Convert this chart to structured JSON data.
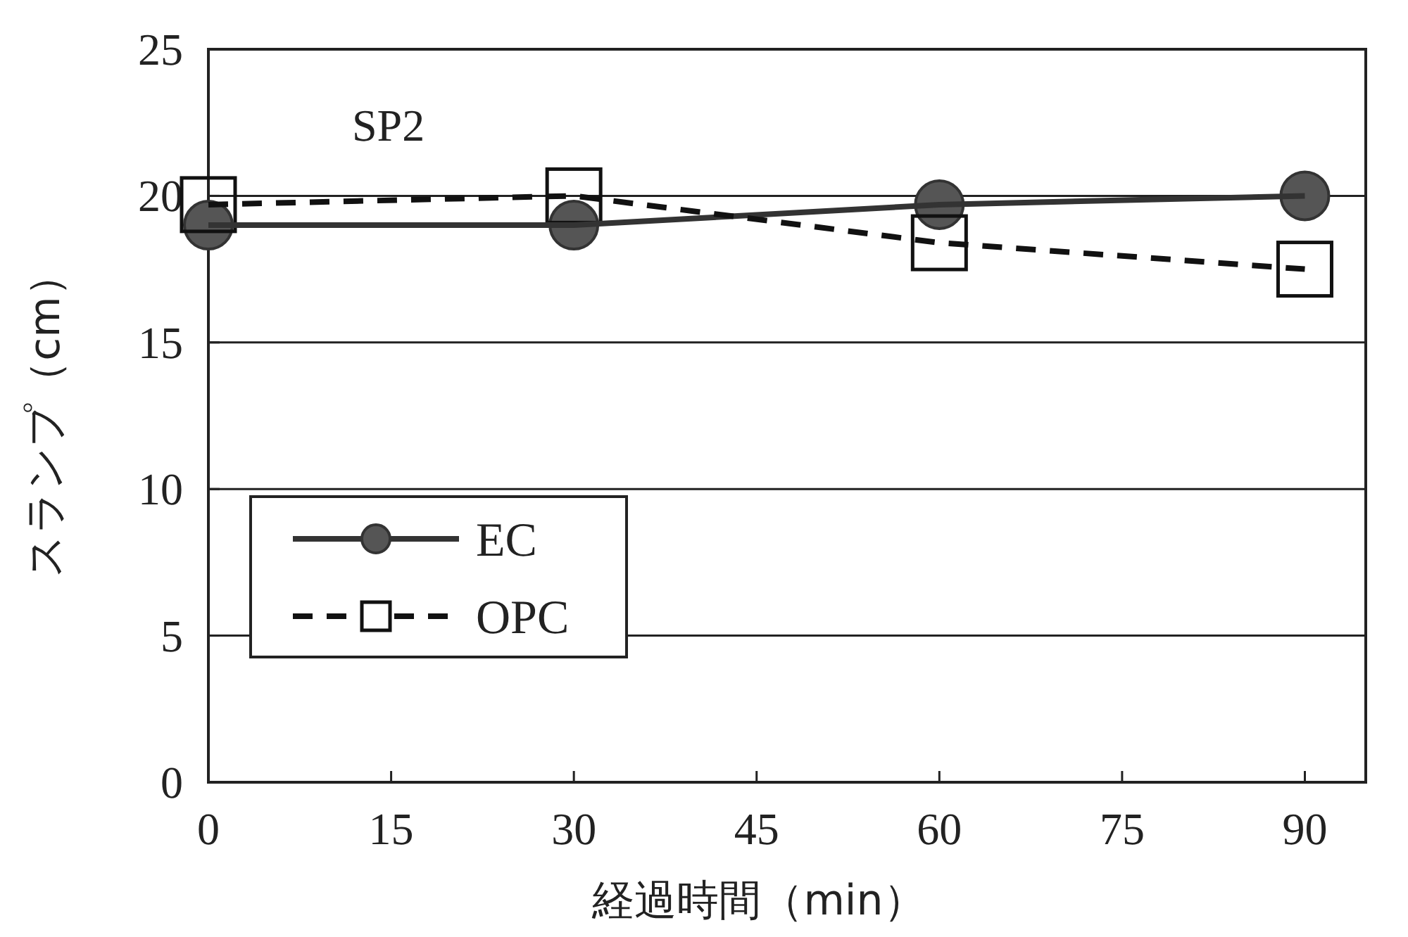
{
  "chart_data": {
    "type": "line",
    "xlabel": "経過時間（min）",
    "ylabel": "スランプ（cm）",
    "annotations": [
      "SP2"
    ],
    "x": [
      0,
      30,
      60,
      90
    ],
    "xlim": [
      0,
      95
    ],
    "xticks": [
      0,
      15,
      30,
      45,
      60,
      75,
      90
    ],
    "ylim": [
      0,
      25
    ],
    "yticks": [
      0,
      5,
      10,
      15,
      20,
      25
    ],
    "grid": "y",
    "legend": "left",
    "series": [
      {
        "name": "EC",
        "color": "#333333",
        "values": [
          19,
          19,
          19.7,
          20
        ],
        "marker": "circle",
        "line_style": "solid"
      },
      {
        "name": "OPC",
        "color": "#111111",
        "values": [
          19.7,
          20,
          18.4,
          17.5
        ],
        "marker": "square",
        "line_style": "dashed"
      }
    ]
  }
}
